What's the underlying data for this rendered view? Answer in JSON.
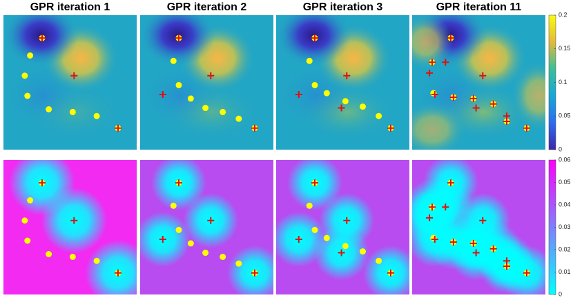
{
  "chart_data": [
    {
      "type": "scatter",
      "title": "GPR iteration 1",
      "xlim": [
        0,
        1
      ],
      "ylim": [
        0,
        1
      ],
      "samples": {
        "color": "#ffff00",
        "x": [
          0.29,
          0.2,
          0.16,
          0.18,
          0.34,
          0.52,
          0.7,
          0.86
        ],
        "y": [
          0.83,
          0.7,
          0.55,
          0.4,
          0.3,
          0.28,
          0.25,
          0.16
        ]
      },
      "selected": {
        "color": "#e01010",
        "x": [
          0.29,
          0.53,
          0.86
        ],
        "y": [
          0.83,
          0.55,
          0.16
        ]
      }
    },
    {
      "type": "scatter",
      "title": "GPR iteration 2",
      "xlim": [
        0,
        1
      ],
      "ylim": [
        0,
        1
      ],
      "samples": {
        "color": "#ffff00",
        "x": [
          0.29,
          0.25,
          0.29,
          0.38,
          0.49,
          0.62,
          0.74,
          0.86
        ],
        "y": [
          0.83,
          0.66,
          0.48,
          0.38,
          0.31,
          0.28,
          0.23,
          0.16
        ]
      },
      "selected": {
        "color": "#e01010",
        "x": [
          0.29,
          0.53,
          0.17,
          0.86
        ],
        "y": [
          0.83,
          0.55,
          0.41,
          0.16
        ]
      }
    },
    {
      "type": "scatter",
      "title": "GPR iteration 3",
      "xlim": [
        0,
        1
      ],
      "ylim": [
        0,
        1
      ],
      "samples": {
        "color": "#ffff00",
        "x": [
          0.29,
          0.25,
          0.29,
          0.38,
          0.52,
          0.65,
          0.77,
          0.86
        ],
        "y": [
          0.83,
          0.66,
          0.48,
          0.42,
          0.36,
          0.32,
          0.25,
          0.16
        ]
      },
      "selected": {
        "color": "#e01010",
        "x": [
          0.29,
          0.53,
          0.17,
          0.49,
          0.86
        ],
        "y": [
          0.83,
          0.55,
          0.41,
          0.31,
          0.16
        ]
      }
    },
    {
      "type": "scatter",
      "title": "GPR iteration 11",
      "xlim": [
        0,
        1
      ],
      "ylim": [
        0,
        1
      ],
      "samples": {
        "color": "#ffff00",
        "x": [
          0.29,
          0.15,
          0.16,
          0.31,
          0.46,
          0.61,
          0.71,
          0.86
        ],
        "y": [
          0.83,
          0.65,
          0.42,
          0.39,
          0.38,
          0.34,
          0.21,
          0.16
        ]
      },
      "selected": {
        "color": "#e01010",
        "x": [
          0.29,
          0.15,
          0.25,
          0.13,
          0.53,
          0.17,
          0.31,
          0.46,
          0.48,
          0.61,
          0.71,
          0.71,
          0.86
        ],
        "y": [
          0.83,
          0.65,
          0.65,
          0.57,
          0.55,
          0.41,
          0.39,
          0.38,
          0.31,
          0.34,
          0.25,
          0.21,
          0.16
        ]
      }
    }
  ],
  "colorbars": [
    {
      "ylim": [
        0,
        0.2
      ],
      "yticks": [
        0,
        0.05,
        0.1,
        0.15,
        0.2
      ]
    },
    {
      "ylim": [
        0,
        0.06
      ],
      "yticks": [
        0,
        0.01,
        0.02,
        0.03,
        0.04,
        0.05,
        0.06
      ]
    }
  ]
}
